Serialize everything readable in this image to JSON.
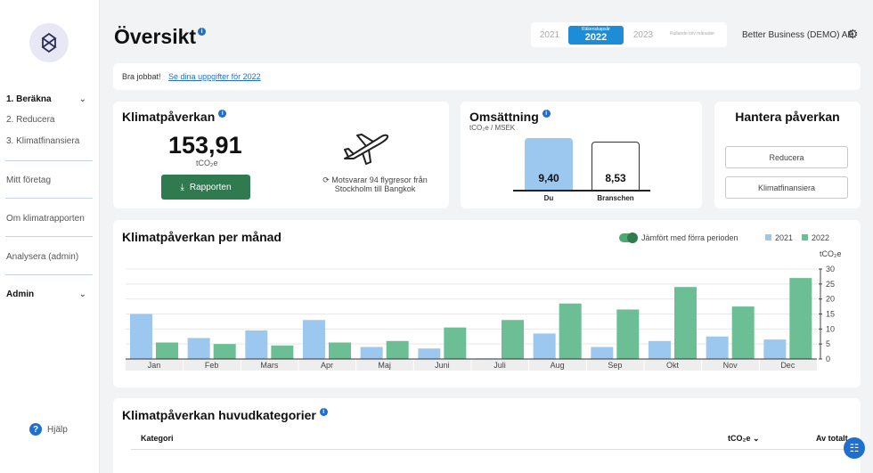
{
  "sidebar": {
    "items": [
      {
        "label": "1. Beräkna"
      },
      {
        "label": "2. Reducera"
      },
      {
        "label": "3. Klimatfinansiera"
      },
      {
        "label": "Mitt företag"
      },
      {
        "label": "Om klimatrapporten"
      },
      {
        "label": "Analysera (admin)"
      },
      {
        "label": "Admin"
      }
    ],
    "help_label": "Hjälp"
  },
  "header": {
    "title": "Översikt",
    "years": [
      {
        "label": "2021"
      },
      {
        "small": "Räkenskapsår",
        "label": "2022"
      },
      {
        "label": "2023"
      },
      {
        "label": "Rullande tolv månader"
      }
    ],
    "company": "Better Business (DEMO) AB"
  },
  "banner": {
    "text": "Bra jobbat!",
    "link": "Se dina uppgifter för 2022"
  },
  "impact": {
    "title": "Klimatpåverkan",
    "value": "153,91",
    "unit": "tCO₂e",
    "button": "Rapporten",
    "flight_text": "Motsvarar 94 flygresor från Stockholm till Bangkok"
  },
  "turnover": {
    "title": "Omsättning",
    "unit": "tCO₂e / MSEK",
    "du_value": "9,40",
    "du_label": "Du",
    "branch_value": "8,53",
    "branch_label": "Branschen"
  },
  "manage": {
    "title": "Hantera påverkan",
    "btn_reduce": "Reducera",
    "btn_finance": "Klimatfinansiera"
  },
  "monthly": {
    "title": "Klimatpåverkan per månad",
    "toggle_label": "Jämfört med förra perioden",
    "legend": [
      "2021",
      "2022"
    ]
  },
  "categories": {
    "title": "Klimatpåverkan huvudkategorier",
    "col_category": "Kategori",
    "col_tco2e": "tCO₂e",
    "col_share": "Av totalt"
  },
  "colors": {
    "accent": "#1f6fd1",
    "series_2021": "#9cc8f0",
    "series_2022": "#6cbf95",
    "button_green": "#2f7a4f"
  },
  "chart_data": {
    "type": "bar",
    "categories": [
      "Jan",
      "Feb",
      "Mars",
      "Apr",
      "Maj",
      "Juni",
      "Juli",
      "Aug",
      "Sep",
      "Okt",
      "Nov",
      "Dec"
    ],
    "series": [
      {
        "name": "2021",
        "values": [
          15,
          7,
          9.5,
          13,
          4,
          3.5,
          0.2,
          8.5,
          4,
          6,
          7.5,
          6.5
        ]
      },
      {
        "name": "2022",
        "values": [
          5.5,
          5,
          4.5,
          5.5,
          6,
          10.5,
          13,
          18.5,
          16.5,
          24,
          17.5,
          27
        ]
      }
    ],
    "ylabel": "tCO₂e",
    "ylim": [
      0,
      30
    ],
    "yticks": [
      0,
      5,
      10,
      15,
      20,
      25,
      30
    ],
    "legend_position": "top-right"
  }
}
